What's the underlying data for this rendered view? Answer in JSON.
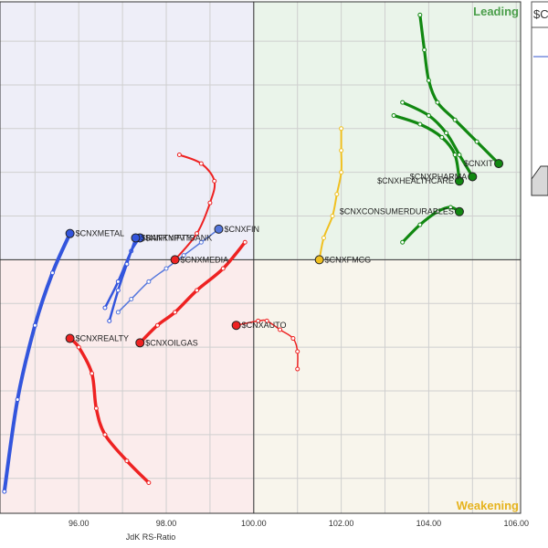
{
  "chart_data": {
    "type": "scatter",
    "subtype": "relative-rotation-graph",
    "xlabel": "JdK RS-Ratio",
    "ylabel": "",
    "xlim": [
      94.2,
      106.1
    ],
    "ylim": [
      94.2,
      105.9
    ],
    "center": [
      100,
      100
    ],
    "x_ticks": [
      "96.00",
      "98.00",
      "100.00",
      "102.00",
      "104.00",
      "106.00"
    ],
    "quadrants": {
      "leading": {
        "label": "Leading",
        "color": "#4a9e4a",
        "fill": "#eaf4ea"
      },
      "weakening": {
        "label": "Weakening",
        "color": "#e6b31e",
        "fill": "#f8f5ec"
      },
      "lagging": {
        "label": "",
        "color": "#cc3333",
        "fill": "#fbecec"
      },
      "improving": {
        "label": "",
        "color": "#3355cc",
        "fill": "#eeeef8"
      }
    },
    "grid": true,
    "legend": "none",
    "series": [
      {
        "name": "$CNXIT",
        "color": "#118811",
        "width": 3.2,
        "tailDots": true,
        "x": [
          103.8,
          103.9,
          104.0,
          104.2,
          104.6,
          105.1,
          105.6
        ],
        "y": [
          105.6,
          104.8,
          104.1,
          103.6,
          103.2,
          102.7,
          102.2
        ]
      },
      {
        "name": "$CNXHEALTHCARE",
        "color": "#118811",
        "width": 3.2,
        "tailDots": true,
        "x": [
          103.2,
          103.8,
          104.3,
          104.6,
          104.7
        ],
        "y": [
          103.3,
          103.1,
          102.8,
          102.4,
          101.8
        ]
      },
      {
        "name": "$CNXPHARMA",
        "color": "#118811",
        "width": 3.2,
        "tailDots": true,
        "x": [
          103.4,
          104.0,
          104.4,
          104.7,
          105.0
        ],
        "y": [
          103.6,
          103.3,
          102.9,
          102.4,
          101.9
        ]
      },
      {
        "name": "$CNXCONSUMERDURABLES",
        "color": "#118811",
        "width": 3.2,
        "tailDots": true,
        "x": [
          103.4,
          103.8,
          104.2,
          104.5,
          104.7
        ],
        "y": [
          100.4,
          100.8,
          101.1,
          101.2,
          101.1
        ]
      },
      {
        "name": "$CNXFMCG",
        "color": "#f0c020",
        "width": 2,
        "tailDots": true,
        "x": [
          102.0,
          102.0,
          102.0,
          101.9,
          101.8,
          101.6,
          101.5
        ],
        "y": [
          103.0,
          102.5,
          102.0,
          101.5,
          101.0,
          100.5,
          100.0
        ]
      },
      {
        "name": "$CNXFIN",
        "color": "#5577dd",
        "width": 1.5,
        "tailDots": true,
        "x": [
          96.9,
          97.2,
          97.6,
          98.0,
          98.4,
          98.8,
          99.2
        ],
        "y": [
          98.8,
          99.1,
          99.5,
          99.8,
          100.1,
          100.4,
          100.7
        ]
      },
      {
        "name": "$NIFTYPVTBANK",
        "color": "#3355dd",
        "width": 2.5,
        "tailDots": true,
        "x": [
          96.6,
          96.9,
          97.2,
          97.4
        ],
        "y": [
          98.9,
          99.5,
          100.2,
          100.5
        ]
      },
      {
        "name": "$BANKNIFTY",
        "color": "#3355dd",
        "width": 2.5,
        "tailDots": true,
        "x": [
          96.7,
          96.9,
          97.1,
          97.3
        ],
        "y": [
          98.6,
          99.3,
          99.9,
          100.5
        ]
      },
      {
        "name": "$CNXMETAL",
        "color": "#3355dd",
        "width": 4,
        "tailDots": true,
        "x": [
          94.3,
          94.6,
          95.0,
          95.4,
          95.8
        ],
        "y": [
          94.7,
          96.8,
          98.5,
          99.7,
          100.6
        ]
      },
      {
        "name": "$CNXMEDIA",
        "color": "#ee2222",
        "width": 2,
        "tailDots": true,
        "x": [
          98.3,
          98.8,
          99.1,
          99.0,
          98.7,
          98.2
        ],
        "y": [
          102.4,
          102.2,
          101.8,
          101.3,
          100.6,
          100.0
        ]
      },
      {
        "name": "$CNXOILGAS",
        "color": "#ee2222",
        "width": 3.5,
        "tailDots": true,
        "x": [
          99.8,
          99.3,
          98.7,
          98.2,
          97.8,
          97.4
        ],
        "y": [
          100.4,
          99.8,
          99.3,
          98.8,
          98.5,
          98.1
        ]
      },
      {
        "name": "$CNXREALTY",
        "color": "#ee2222",
        "width": 3.5,
        "tailDots": true,
        "x": [
          97.6,
          97.1,
          96.6,
          96.4,
          96.3,
          96.0,
          95.8
        ],
        "y": [
          94.9,
          95.4,
          96.0,
          96.6,
          97.4,
          98.0,
          98.2
        ]
      },
      {
        "name": "$CNXAUTO",
        "color": "#ee2222",
        "width": 1.5,
        "tailDots": true,
        "x": [
          101.0,
          101.0,
          100.9,
          100.6,
          100.3,
          100.1,
          99.6
        ],
        "y": [
          97.5,
          97.9,
          98.2,
          98.4,
          98.6,
          98.6,
          98.5
        ]
      }
    ],
    "labels": [
      {
        "text": "$CNXIT",
        "series": 0
      },
      {
        "text": "$CNXHEALTHCARE",
        "series": 1
      },
      {
        "text": "$CNXPHARMA",
        "series": 2
      },
      {
        "text": "$CNXCONSUMERDURABLES",
        "series": 3
      },
      {
        "text": "$CNXFMCG",
        "series": 4
      },
      {
        "text": "$CNXFIN",
        "series": 5
      },
      {
        "text": "$NIFTYPVTBANK",
        "series": 6
      },
      {
        "text": "$BANKNIFTY",
        "series": 7
      },
      {
        "text": "$CNXMETAL",
        "series": 8
      },
      {
        "text": "$CNXMEDIA",
        "series": 9
      },
      {
        "text": "$CNXOILGAS",
        "series": 10
      },
      {
        "text": "$CNXREALTY",
        "series": 11
      },
      {
        "text": "$CNXAUTO",
        "series": 12
      }
    ]
  },
  "side_panel": {
    "title": "$C"
  }
}
